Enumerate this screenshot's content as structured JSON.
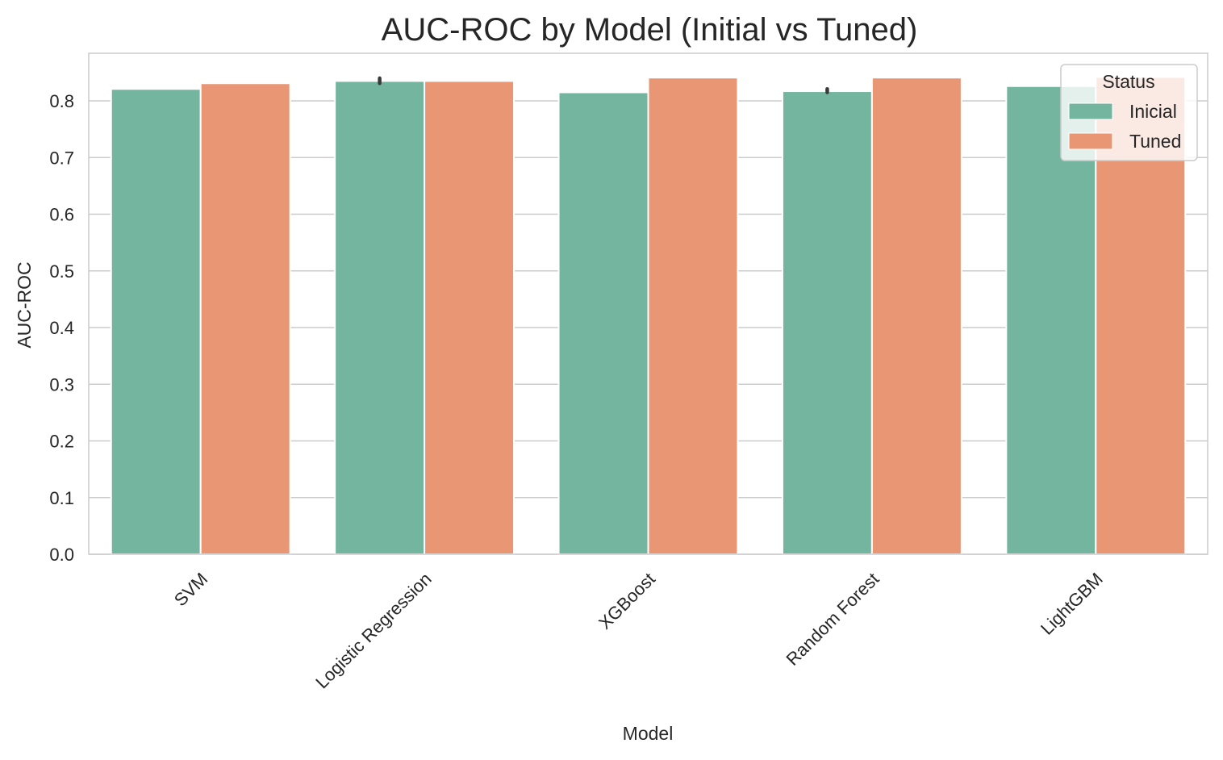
{
  "chart_data": {
    "type": "bar",
    "title": "AUC-ROC by Model (Initial vs Tuned)",
    "xlabel": "Model",
    "ylabel": "AUC-ROC",
    "categories": [
      "SVM",
      "Logistic Regression",
      "XGBoost",
      "Random Forest",
      "LightGBM"
    ],
    "series": [
      {
        "name": "Inicial",
        "color": "#74b5a0",
        "values": [
          0.821,
          0.835,
          0.815,
          0.817,
          0.826
        ],
        "error_bars": [
          null,
          [
            0.831,
            0.84
          ],
          null,
          [
            0.815,
            0.821
          ],
          null
        ]
      },
      {
        "name": "Tuned",
        "color": "#e89674",
        "values": [
          0.831,
          0.835,
          0.841,
          0.841,
          0.842
        ],
        "error_bars": [
          null,
          null,
          null,
          null,
          null
        ]
      }
    ],
    "ylim": [
      0,
      0.884
    ],
    "yticks": [
      "0.0",
      "0.1",
      "0.2",
      "0.3",
      "0.4",
      "0.5",
      "0.6",
      "0.7",
      "0.8"
    ],
    "ytick_values": [
      0,
      0.1,
      0.2,
      0.3,
      0.4,
      0.5,
      0.6,
      0.7,
      0.8
    ],
    "grid": "horizontal",
    "legend": {
      "title": "Status",
      "placement": "top-right"
    },
    "colors": {
      "grid": "#cccccc",
      "frame": "#cccccc",
      "text": "#262626",
      "errorbar": "#3a3a3a"
    }
  }
}
